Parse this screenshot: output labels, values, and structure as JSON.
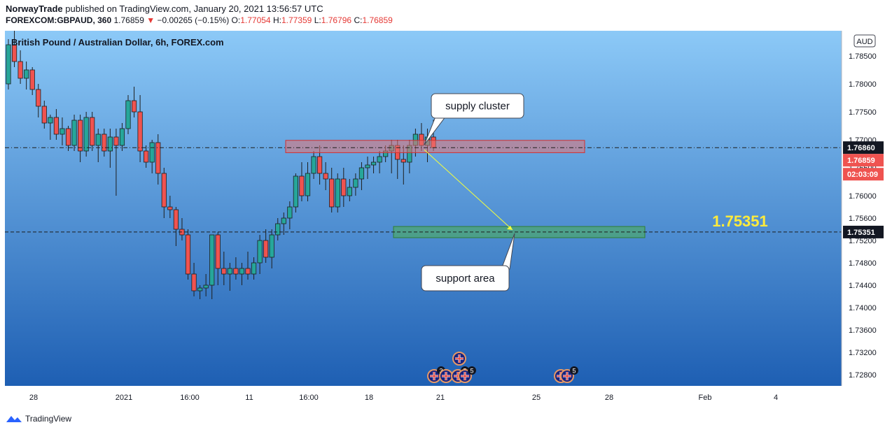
{
  "header": {
    "publisher": "NorwayTrade",
    "published_text": "published on TradingView.com, January 20, 2021 13:56:57 UTC",
    "symbol": "FOREXCOM:GBPAUD, 360",
    "last": "1.76859",
    "change": "−0.00265 (−0.15%)",
    "o_label": "O:",
    "o_value": "1.77054",
    "h_label": "H:",
    "h_value": "1.77359",
    "l_label": "L:",
    "l_value": "1.76796",
    "c_label": "C:",
    "c_value": "1.76859"
  },
  "footer": {
    "brand": "TradingView"
  },
  "colors": {
    "bull": "#26a69a",
    "bear": "#ef5350",
    "bg_top": "#8cc9f7",
    "bg_bottom": "#1e5fb3",
    "supply_zone": "#e57373",
    "support_zone": "#4caf50",
    "highlight_price": "#ffeb3b"
  },
  "chart_data": {
    "type": "candlestick",
    "title": "British Pound / Australian Dollar, 6h, FOREX.com",
    "currency": "AUD",
    "ylim": [
      1.726,
      1.7895
    ],
    "y_ticks": [
      "1.78500",
      "1.78000",
      "1.77500",
      "1.77000",
      "1.76500",
      "1.76000",
      "1.75600",
      "1.75200",
      "1.74800",
      "1.74400",
      "1.74000",
      "1.73600",
      "1.73200",
      "1.72800"
    ],
    "x_ticks": [
      "28",
      "2021",
      "16:00",
      "11",
      "16:00",
      "18",
      "21",
      "25",
      "28",
      "Feb",
      "4"
    ],
    "price_labels": {
      "current_line": "1.76860",
      "last_price": "1.76859",
      "countdown": "02:03:09",
      "target_line": "1.75351"
    },
    "target_text": "1.75351",
    "annotations": [
      "supply cluster",
      "support area"
    ],
    "supply_zone": {
      "from": 1.7677,
      "to": 1.7699
    },
    "support_zone": {
      "from": 1.7525,
      "to": 1.7545
    },
    "event_markers": [
      "3",
      "5",
      "5",
      "5"
    ],
    "candles": [
      [
        1.78,
        1.788,
        1.779,
        1.787
      ],
      [
        1.787,
        1.7895,
        1.783,
        1.784
      ],
      [
        1.784,
        1.786,
        1.78,
        1.781
      ],
      [
        1.781,
        1.784,
        1.779,
        1.7825
      ],
      [
        1.7825,
        1.783,
        1.778,
        1.779
      ],
      [
        1.779,
        1.78,
        1.774,
        1.776
      ],
      [
        1.776,
        1.777,
        1.772,
        1.773
      ],
      [
        1.773,
        1.7745,
        1.77,
        1.774
      ],
      [
        1.774,
        1.7755,
        1.77,
        1.771
      ],
      [
        1.771,
        1.774,
        1.769,
        1.772
      ],
      [
        1.772,
        1.7725,
        1.768,
        1.769
      ],
      [
        1.769,
        1.7745,
        1.768,
        1.7735
      ],
      [
        1.7735,
        1.7745,
        1.766,
        1.768
      ],
      [
        1.768,
        1.775,
        1.767,
        1.774
      ],
      [
        1.774,
        1.775,
        1.768,
        1.769
      ],
      [
        1.769,
        1.772,
        1.766,
        1.771
      ],
      [
        1.771,
        1.772,
        1.767,
        1.768
      ],
      [
        1.768,
        1.772,
        1.765,
        1.7705
      ],
      [
        1.7705,
        1.772,
        1.76,
        1.769
      ],
      [
        1.769,
        1.773,
        1.768,
        1.772
      ],
      [
        1.772,
        1.778,
        1.771,
        1.777
      ],
      [
        1.777,
        1.7795,
        1.774,
        1.775
      ],
      [
        1.775,
        1.778,
        1.766,
        1.768
      ],
      [
        1.768,
        1.769,
        1.765,
        1.766
      ],
      [
        1.766,
        1.77,
        1.764,
        1.7695
      ],
      [
        1.7695,
        1.771,
        1.762,
        1.764
      ],
      [
        1.764,
        1.765,
        1.756,
        1.758
      ],
      [
        1.758,
        1.76,
        1.756,
        1.7575
      ],
      [
        1.7575,
        1.758,
        1.751,
        1.754
      ],
      [
        1.754,
        1.756,
        1.752,
        1.753
      ],
      [
        1.753,
        1.754,
        1.745,
        1.746
      ],
      [
        1.746,
        1.748,
        1.742,
        1.743
      ],
      [
        1.743,
        1.744,
        1.7415,
        1.7435
      ],
      [
        1.7435,
        1.746,
        1.742,
        1.744
      ],
      [
        1.744,
        1.753,
        1.7415,
        1.753
      ],
      [
        1.753,
        1.7535,
        1.744,
        1.747
      ],
      [
        1.747,
        1.75,
        1.744,
        1.746
      ],
      [
        1.746,
        1.748,
        1.743,
        1.747
      ],
      [
        1.747,
        1.749,
        1.745,
        1.746
      ],
      [
        1.746,
        1.748,
        1.744,
        1.747
      ],
      [
        1.747,
        1.75,
        1.745,
        1.746
      ],
      [
        1.746,
        1.749,
        1.745,
        1.748
      ],
      [
        1.748,
        1.753,
        1.746,
        1.752
      ],
      [
        1.752,
        1.754,
        1.748,
        1.749
      ],
      [
        1.749,
        1.754,
        1.747,
        1.753
      ],
      [
        1.753,
        1.756,
        1.752,
        1.755
      ],
      [
        1.755,
        1.757,
        1.753,
        1.756
      ],
      [
        1.756,
        1.759,
        1.754,
        1.758
      ],
      [
        1.758,
        1.764,
        1.757,
        1.7635
      ],
      [
        1.7635,
        1.766,
        1.759,
        1.76
      ],
      [
        1.76,
        1.766,
        1.759,
        1.764
      ],
      [
        1.764,
        1.768,
        1.763,
        1.767
      ],
      [
        1.767,
        1.769,
        1.762,
        1.764
      ],
      [
        1.764,
        1.766,
        1.761,
        1.763
      ],
      [
        1.763,
        1.765,
        1.757,
        1.758
      ],
      [
        1.758,
        1.764,
        1.757,
        1.763
      ],
      [
        1.763,
        1.765,
        1.758,
        1.76
      ],
      [
        1.76,
        1.763,
        1.759,
        1.7615
      ],
      [
        1.7615,
        1.764,
        1.76,
        1.763
      ],
      [
        1.763,
        1.766,
        1.761,
        1.765
      ],
      [
        1.765,
        1.767,
        1.763,
        1.7655
      ],
      [
        1.7655,
        1.767,
        1.764,
        1.766
      ],
      [
        1.766,
        1.768,
        1.764,
        1.767
      ],
      [
        1.767,
        1.769,
        1.766,
        1.768
      ],
      [
        1.768,
        1.77,
        1.764,
        1.769
      ],
      [
        1.769,
        1.77,
        1.763,
        1.7665
      ],
      [
        1.7665,
        1.769,
        1.762,
        1.766
      ],
      [
        1.766,
        1.77,
        1.764,
        1.769
      ],
      [
        1.769,
        1.772,
        1.767,
        1.771
      ],
      [
        1.771,
        1.773,
        1.768,
        1.769
      ],
      [
        1.769,
        1.772,
        1.766,
        1.7705
      ],
      [
        1.7705,
        1.7736,
        1.768,
        1.7686
      ]
    ]
  }
}
